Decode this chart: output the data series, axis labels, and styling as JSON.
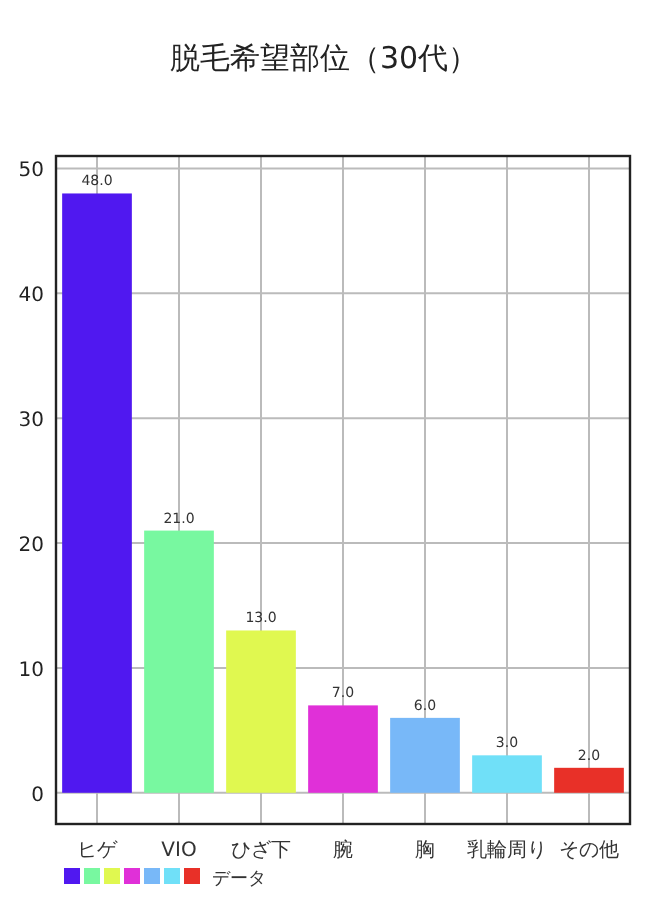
{
  "chart_data": {
    "type": "bar",
    "title": "脱毛希望部位（30代）",
    "categories": [
      "ヒゲ",
      "VIO",
      "ひざ下",
      "腕",
      "胸",
      "乳輪周り",
      "その他"
    ],
    "series": [
      {
        "name": "データ",
        "colors": [
          "#5018f0",
          "#78f8a0",
          "#e0f850",
          "#e030d8",
          "#78b8f8",
          "#70e0f8",
          "#e83028"
        ],
        "values": [
          48,
          21,
          13,
          7,
          6,
          3,
          2
        ],
        "value_labels": [
          "48.0",
          "21.0",
          "13.0",
          "7.0",
          "6.0",
          "3.0",
          "2.0"
        ]
      }
    ],
    "ylim": [
      -2.5,
      51
    ],
    "yticks": [
      0,
      10,
      20,
      30,
      40,
      50
    ],
    "grid": true,
    "legend": "bottom left"
  }
}
